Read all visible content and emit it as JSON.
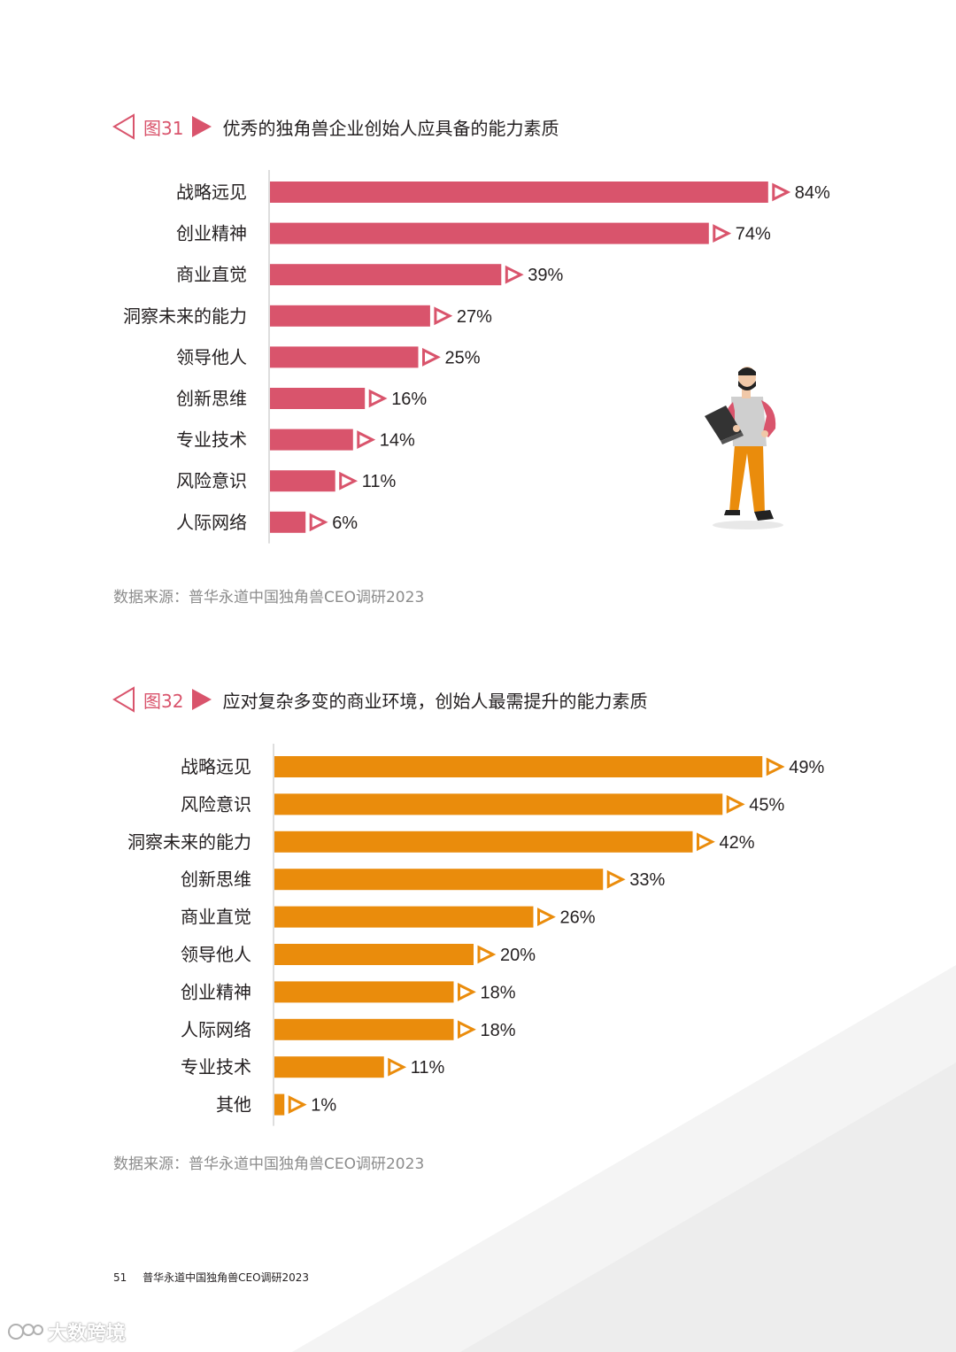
{
  "colors": {
    "pink": "#d9546c",
    "orange": "#ea8c0c",
    "axis": "#bdbdbd",
    "source": "#8c8c8c"
  },
  "figure31": {
    "num": "图31",
    "title": "优秀的独角兽企业创始人应具备的能力素质",
    "source": "数据来源：普华永道中国独角兽CEO调研2023"
  },
  "figure32": {
    "num": "图32",
    "title": "应对复杂多变的商业环境，创始人最需提升的能力素质",
    "source": "数据来源：普华永道中国独角兽CEO调研2023"
  },
  "chart_data": [
    {
      "type": "bar",
      "orientation": "horizontal",
      "title": "优秀的独角兽企业创始人应具备的能力素质",
      "categories": [
        "战略远见",
        "创业精神",
        "商业直觉",
        "洞察未来的能力",
        "领导他人",
        "创新思维",
        "专业技术",
        "风险意识",
        "人际网络"
      ],
      "values": [
        84,
        74,
        39,
        27,
        25,
        16,
        14,
        11,
        6
      ],
      "labels": [
        "84%",
        "74%",
        "39%",
        "27%",
        "25%",
        "16%",
        "14%",
        "11%",
        "6%"
      ],
      "unit": "%",
      "color": "#d9546c"
    },
    {
      "type": "bar",
      "orientation": "horizontal",
      "title": "应对复杂多变的商业环境，创始人最需提升的能力素质",
      "categories": [
        "战略远见",
        "风险意识",
        "洞察未来的能力",
        "创新思维",
        "商业直觉",
        "领导他人",
        "创业精神",
        "人际网络",
        "专业技术",
        "其他"
      ],
      "values": [
        49,
        45,
        42,
        33,
        26,
        20,
        18,
        18,
        11,
        1
      ],
      "labels": [
        "49%",
        "45%",
        "42%",
        "33%",
        "26%",
        "20%",
        "18%",
        "18%",
        "11%",
        "1%"
      ],
      "unit": "%",
      "color": "#ea8c0c"
    }
  ],
  "footer": {
    "page": "51",
    "text": "普华永道中国独角兽CEO调研2023"
  },
  "watermark": {
    "text": "大数跨境"
  },
  "icons": [
    "arrow-left-outline-icon",
    "arrow-right-solid-icon",
    "person-with-laptop-illustration"
  ]
}
